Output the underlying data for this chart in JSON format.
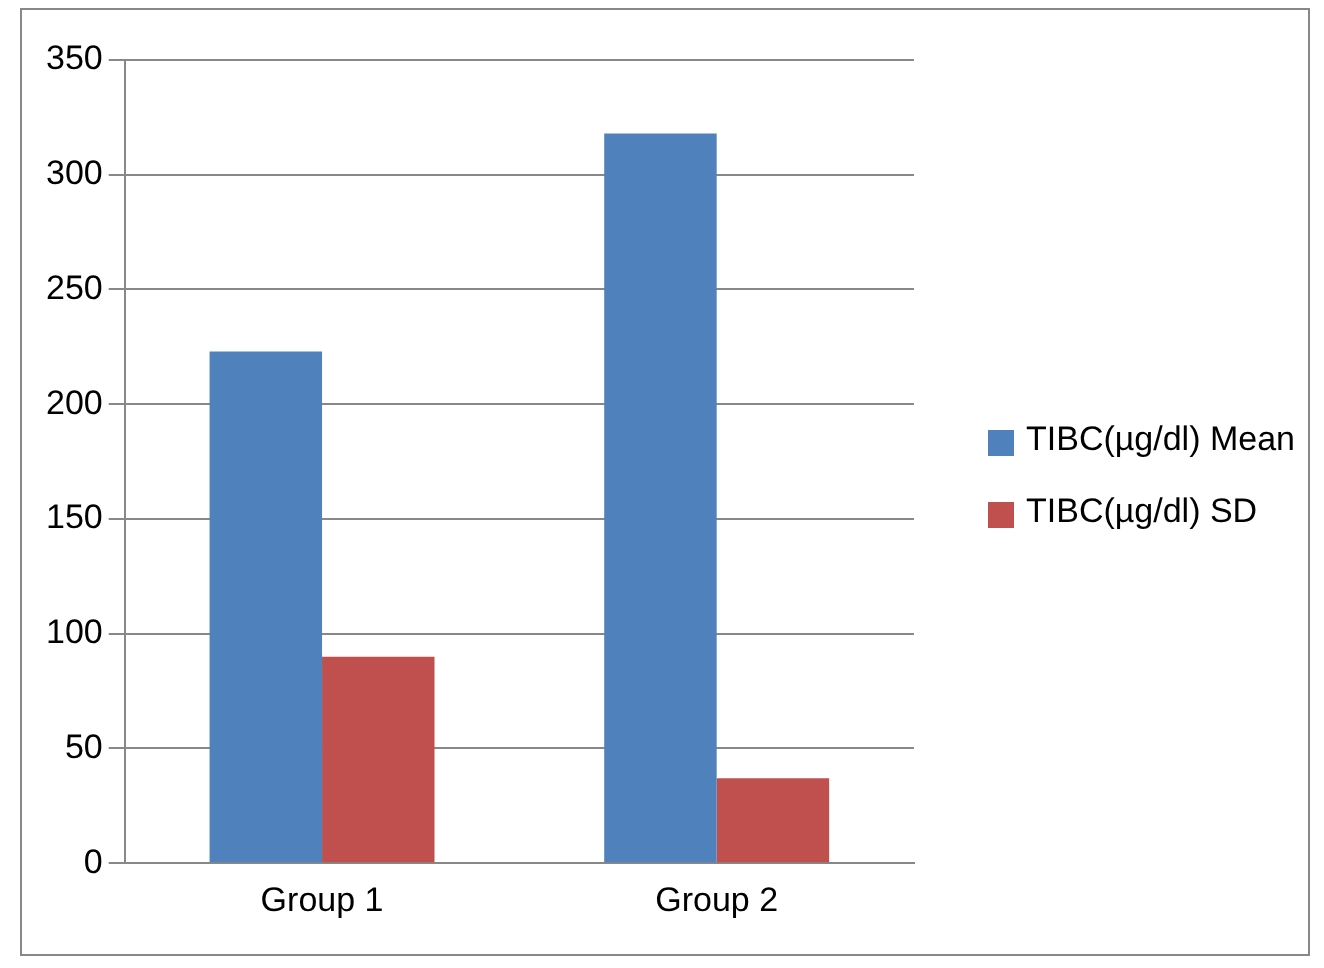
{
  "chart_data": {
    "type": "bar",
    "categories": [
      "Group 1",
      "Group 2"
    ],
    "series": [
      {
        "name": "TIBC(µg/dl) Mean",
        "color": "#4f81bd",
        "values": [
          223,
          318
        ]
      },
      {
        "name": "TIBC(µg/dl) SD",
        "color": "#c0504d",
        "values": [
          90,
          37
        ]
      }
    ],
    "ylim": [
      0,
      350
    ],
    "yticks": [
      0,
      50,
      100,
      150,
      200,
      250,
      300,
      350
    ],
    "grid": "y",
    "legend": "right"
  }
}
